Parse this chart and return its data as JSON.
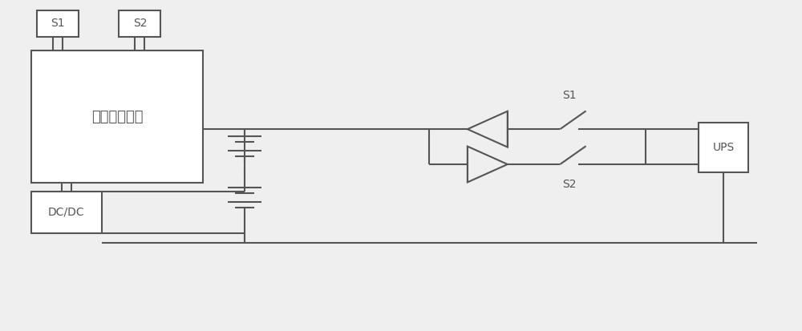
{
  "bg_color": "#efefef",
  "line_color": "#555555",
  "box_facecolor": "#ffffff",
  "line_width": 1.5,
  "figsize": [
    10.0,
    4.13
  ],
  "dpi": 100,
  "label_bms": "电池管理系统",
  "label_dcdc": "DC/DC",
  "label_ups": "UPS",
  "label_s1_top": "S1",
  "label_s2_top": "S2",
  "label_s1_mid": "S1",
  "label_s2_mid": "S2",
  "font_size_bms": 13,
  "font_size_box": 10,
  "font_size_label": 10
}
